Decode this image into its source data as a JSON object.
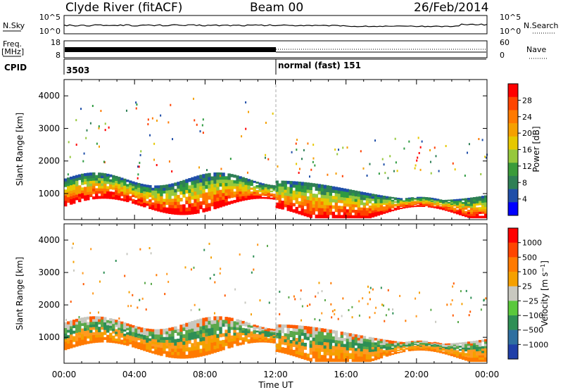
{
  "header": {
    "station": "Clyde River (fitACF)",
    "beam": "Beam 00",
    "date": "26/Feb/2014"
  },
  "top_panels": {
    "nsky_label": "N.Sky",
    "nsearch_label": "N.Search",
    "nsky_ticks": [
      "10^5",
      "10^0"
    ],
    "freq_label": "Freq.",
    "freq_unit": "[MHz]",
    "freq_ticks": [
      "18",
      "8"
    ],
    "nave_label": "Nave",
    "nave_ticks": [
      "60",
      "0"
    ],
    "cpid_label": "CPID",
    "cpid_left": "3503",
    "cpid_right": "normal (fast) 151"
  },
  "chart_data": [
    {
      "type": "heatmap",
      "title": "",
      "ylabel": "Slant Range [km]",
      "xlabel": "Time UT",
      "x_ticks": [
        "00:00",
        "04:00",
        "08:00",
        "12:00",
        "16:00",
        "20:00",
        "00:00"
      ],
      "y_ticks": [
        1000,
        2000,
        3000,
        4000
      ],
      "ylim": [
        200,
        4500
      ],
      "xlim_hours": [
        0,
        24
      ],
      "colorbar": {
        "label": "Power [dB]",
        "ticks": [
          "28",
          "24",
          "20",
          "16",
          "12",
          "8",
          "4"
        ],
        "range": [
          0,
          32
        ],
        "colors": [
          "#0000ff",
          "#1f4ea8",
          "#2e7f55",
          "#3a9b3a",
          "#96c83c",
          "#e6c800",
          "#f5a000",
          "#ff7a00",
          "#ff4500",
          "#ff0000"
        ]
      },
      "colors": [
        "#ff0000",
        "#ff4000",
        "#ff7a00",
        "#f5a000",
        "#e6c800",
        "#96c83c",
        "#2e9b40",
        "#2e7f55",
        "#1f4ea8"
      ]
    },
    {
      "type": "heatmap",
      "title": "",
      "ylabel": "Slant Range [km]",
      "xlabel": "Time UT",
      "x_ticks": [
        "00:00",
        "04:00",
        "08:00",
        "12:00",
        "16:00",
        "20:00",
        "00:00"
      ],
      "y_ticks": [
        1000,
        2000,
        3000,
        4000
      ],
      "ylim": [
        200,
        4500
      ],
      "xlim_hours": [
        0,
        24
      ],
      "colorbar": {
        "label": "Velocity [m s^-1]",
        "ticks": [
          "1000",
          "500",
          "100",
          "25",
          "−25",
          "−100",
          "−500",
          "−1000"
        ],
        "colors": [
          "#1f3fa8",
          "#2e6fa0",
          "#2e8f55",
          "#5ac83c",
          "#c8c8c0",
          "#f5a000",
          "#ff7a00",
          "#ff4500",
          "#ff0000"
        ]
      },
      "colors": [
        "#ff7a00",
        "#f5a000",
        "#ff9a20",
        "#2e8f55",
        "#5aa84a",
        "#c8c8c0",
        "#ff5a00"
      ]
    }
  ],
  "axis_title": "Time UT"
}
